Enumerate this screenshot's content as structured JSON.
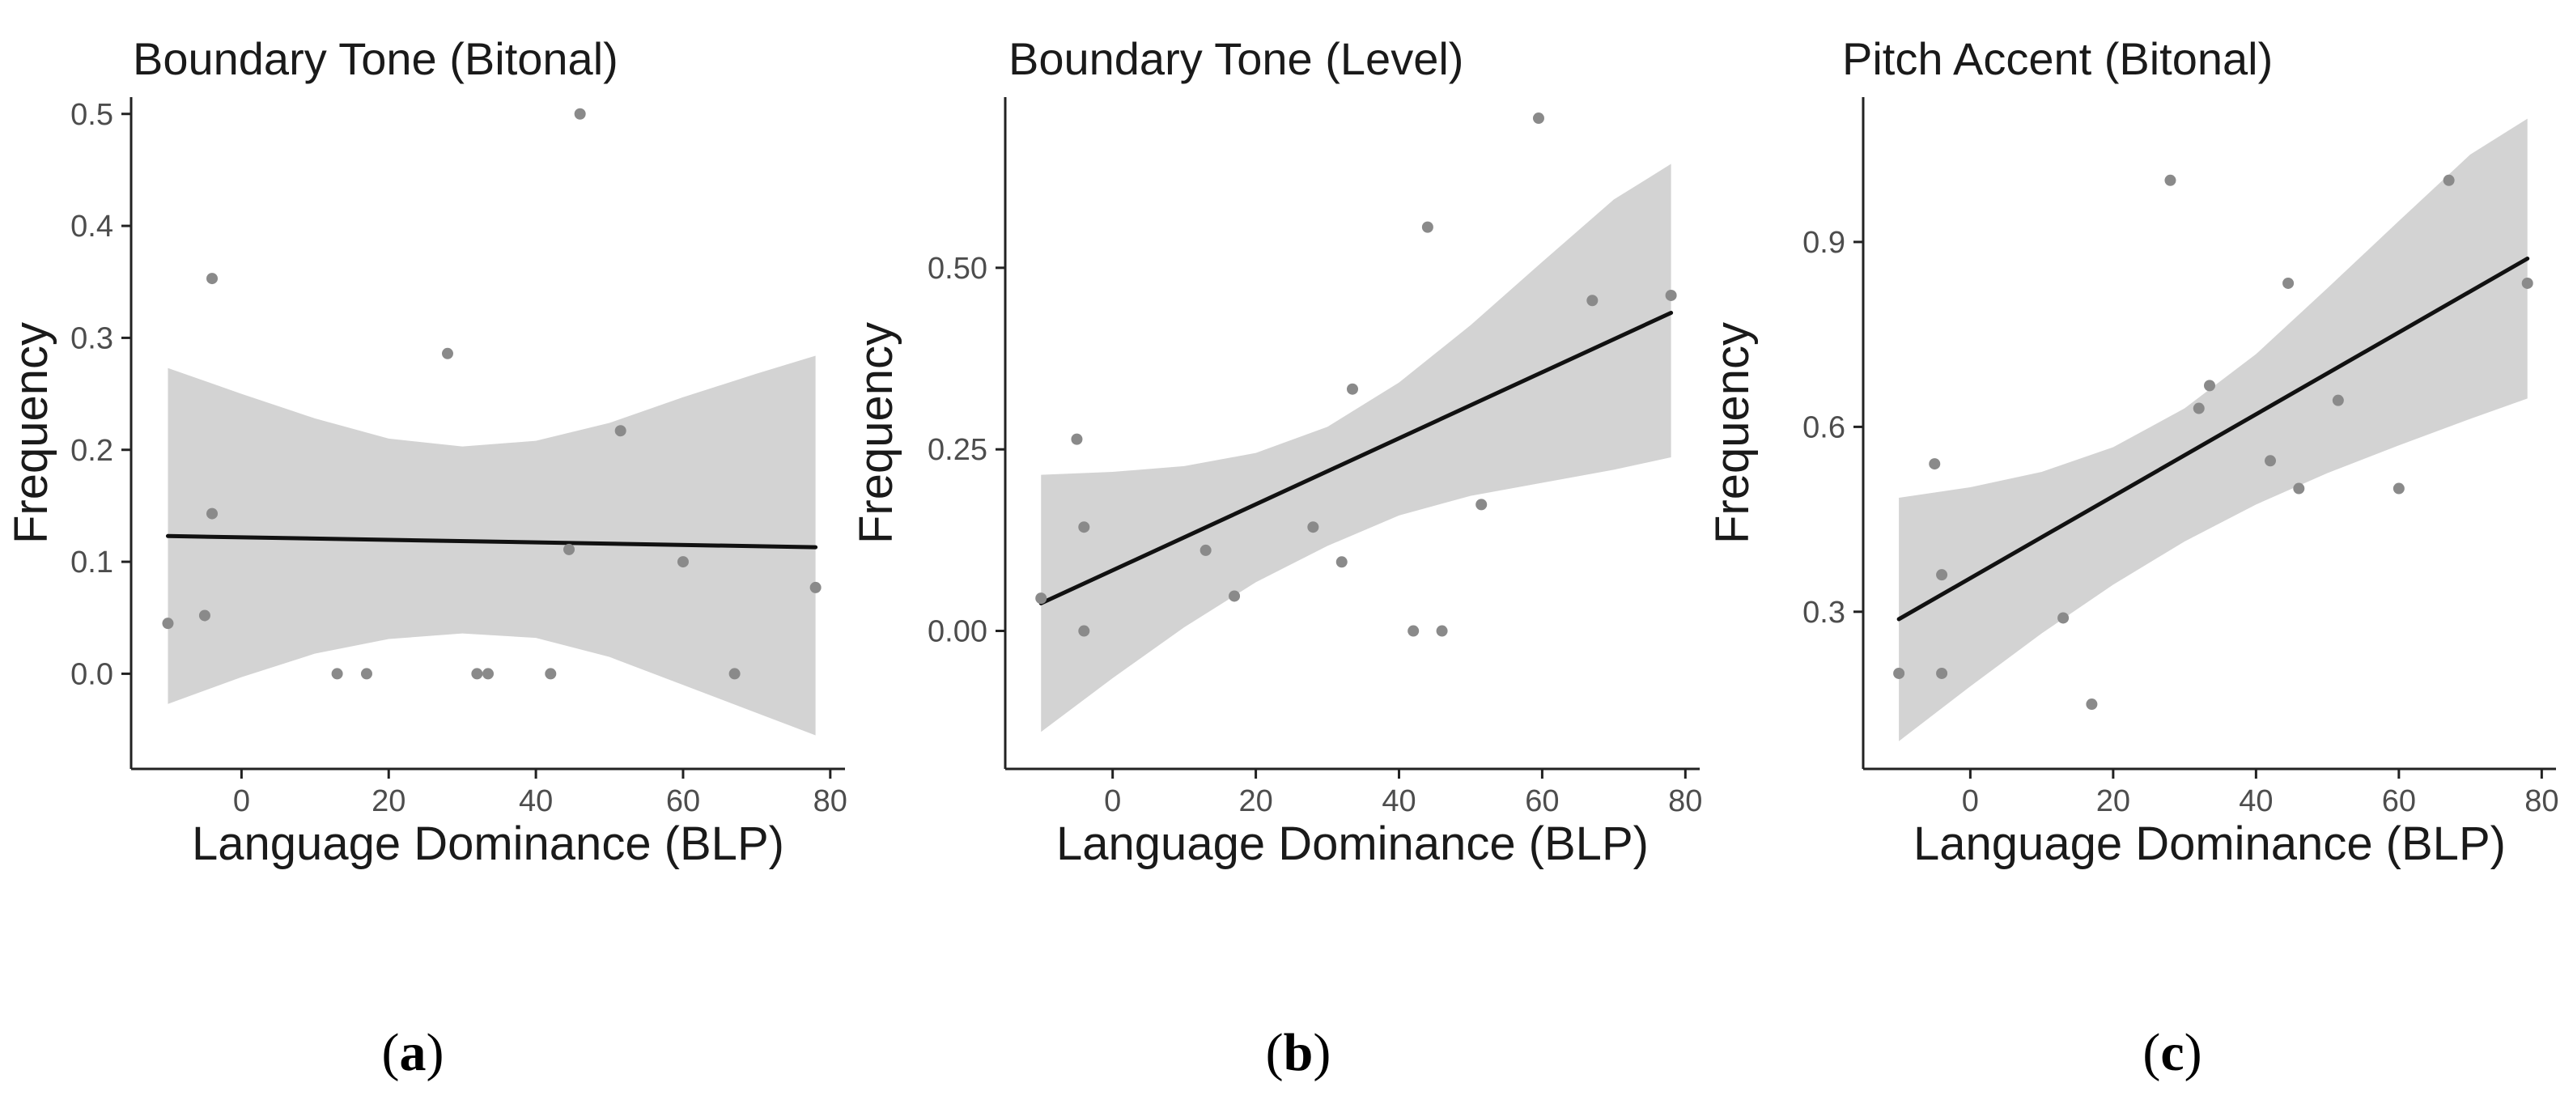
{
  "colors": {
    "band": "#d3d3d3",
    "line": "#111111",
    "point": "#8a8a8a",
    "axis": "#222222",
    "tick_text": "#4d4d4d"
  },
  "chart_data": [
    {
      "type": "scatter",
      "title": "Boundary Tone (Bitonal)",
      "xlabel": "Language Dominance (BLP)",
      "ylabel": "Frequency",
      "xlim": [
        -15,
        82
      ],
      "ylim": [
        -0.085,
        0.515
      ],
      "xticks": [
        0,
        20,
        40,
        60,
        80
      ],
      "xtick_labels": [
        "0",
        "20",
        "40",
        "60",
        "80"
      ],
      "yticks": [
        0.0,
        0.1,
        0.2,
        0.3,
        0.4,
        0.5
      ],
      "ytick_labels": [
        "0.0",
        "0.1",
        "0.2",
        "0.3",
        "0.4",
        "0.5"
      ],
      "points": [
        [
          -10,
          0.045
        ],
        [
          -5,
          0.052
        ],
        [
          -4,
          0.353
        ],
        [
          -4,
          0.143
        ],
        [
          13,
          0.0
        ],
        [
          17,
          0.0
        ],
        [
          28,
          0.286
        ],
        [
          32,
          0.0
        ],
        [
          33.5,
          0.0
        ],
        [
          42,
          0.0
        ],
        [
          44.5,
          0.111
        ],
        [
          46,
          0.5
        ],
        [
          51.5,
          0.217
        ],
        [
          60,
          0.1
        ],
        [
          67,
          0.0
        ],
        [
          78,
          0.077
        ]
      ],
      "fit": {
        "x": [
          -10,
          78
        ],
        "y": [
          0.123,
          0.113
        ]
      },
      "band": {
        "x": [
          -10,
          0,
          10,
          20,
          30,
          40,
          50,
          60,
          70,
          78
        ],
        "upper": [
          0.273,
          0.25,
          0.228,
          0.21,
          0.203,
          0.208,
          0.224,
          0.247,
          0.268,
          0.284
        ],
        "lower": [
          -0.027,
          -0.003,
          0.018,
          0.031,
          0.036,
          0.032,
          0.015,
          -0.01,
          -0.035,
          -0.055
        ]
      },
      "panel_label": {
        "open": "(",
        "letter": "a",
        "close": ")"
      }
    },
    {
      "type": "scatter",
      "title": "Boundary Tone (Level)",
      "xlabel": "Language Dominance (BLP)",
      "ylabel": "Frequency",
      "xlim": [
        -15,
        82
      ],
      "ylim": [
        -0.19,
        0.735
      ],
      "xticks": [
        0,
        20,
        40,
        60,
        80
      ],
      "xtick_labels": [
        "0",
        "20",
        "40",
        "60",
        "80"
      ],
      "yticks": [
        0.0,
        0.25,
        0.5
      ],
      "ytick_labels": [
        "0.00",
        "0.25",
        "0.50"
      ],
      "points": [
        [
          -10,
          0.045
        ],
        [
          -5,
          0.264
        ],
        [
          -4,
          0.143
        ],
        [
          -4,
          0.0
        ],
        [
          13,
          0.111
        ],
        [
          17,
          0.048
        ],
        [
          28,
          0.143
        ],
        [
          32,
          0.095
        ],
        [
          33.5,
          0.333
        ],
        [
          42,
          0.0
        ],
        [
          44,
          0.556
        ],
        [
          46,
          0.0
        ],
        [
          51.5,
          0.174
        ],
        [
          59.5,
          0.706
        ],
        [
          67,
          0.455
        ],
        [
          78,
          0.462
        ]
      ],
      "fit": {
        "x": [
          -10,
          78
        ],
        "y": [
          0.038,
          0.438
        ]
      },
      "band": {
        "x": [
          -10,
          0,
          10,
          20,
          30,
          40,
          50,
          60,
          70,
          78
        ],
        "upper": [
          0.215,
          0.219,
          0.227,
          0.245,
          0.281,
          0.342,
          0.421,
          0.508,
          0.594,
          0.643
        ],
        "lower": [
          -0.139,
          -0.065,
          0.005,
          0.067,
          0.117,
          0.159,
          0.186,
          0.204,
          0.222,
          0.239
        ]
      },
      "panel_label": {
        "open": "(",
        "letter": "b",
        "close": ")"
      }
    },
    {
      "type": "scatter",
      "title": "Pitch Accent (Bitonal)",
      "xlabel": "Language Dominance (BLP)",
      "ylabel": "Frequency",
      "xlim": [
        -15,
        82
      ],
      "ylim": [
        0.045,
        1.135
      ],
      "xticks": [
        0,
        20,
        40,
        60,
        80
      ],
      "xtick_labels": [
        "0",
        "20",
        "40",
        "60",
        "80"
      ],
      "yticks": [
        0.3,
        0.6,
        0.9
      ],
      "ytick_labels": [
        "0.3",
        "0.6",
        "0.9"
      ],
      "points": [
        [
          -10,
          0.2
        ],
        [
          -5,
          0.54
        ],
        [
          -4,
          0.2
        ],
        [
          -4,
          0.36
        ],
        [
          13,
          0.29
        ],
        [
          17,
          0.15
        ],
        [
          28,
          1.0
        ],
        [
          32,
          0.63
        ],
        [
          33.5,
          0.667
        ],
        [
          42,
          0.545
        ],
        [
          44.5,
          0.833
        ],
        [
          46,
          0.5
        ],
        [
          51.5,
          0.643
        ],
        [
          60,
          0.5
        ],
        [
          67,
          1.0
        ],
        [
          78,
          0.833
        ]
      ],
      "fit": {
        "x": [
          -10,
          78
        ],
        "y": [
          0.288,
          0.873
        ]
      },
      "band": {
        "x": [
          -10,
          0,
          10,
          20,
          30,
          40,
          50,
          60,
          70,
          78
        ],
        "upper": [
          0.485,
          0.502,
          0.527,
          0.567,
          0.63,
          0.718,
          0.825,
          0.934,
          1.042,
          1.1
        ],
        "lower": [
          0.09,
          0.179,
          0.265,
          0.344,
          0.414,
          0.474,
          0.525,
          0.57,
          0.613,
          0.646
        ]
      },
      "panel_label": {
        "open": "(",
        "letter": "c",
        "close": ")"
      }
    }
  ]
}
